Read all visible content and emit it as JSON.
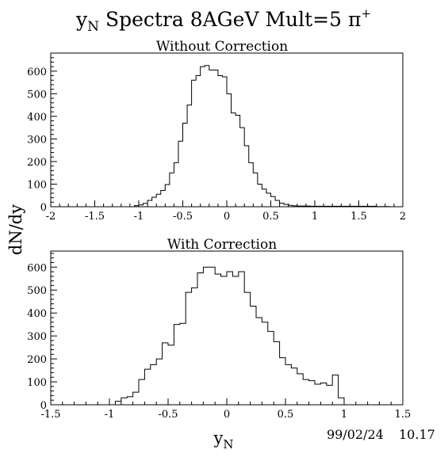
{
  "figure": {
    "title": "Spectra 8AGeV Mult=5",
    "title_prefix_symbol": "y",
    "title_prefix_subscript": "N",
    "title_suffix_symbol": "π",
    "title_suffix_superscript": "+",
    "ylabel": "dN/dy",
    "xlabel_symbol": "y",
    "xlabel_subscript": "N",
    "date": "99/02/24",
    "time": "10.17"
  },
  "chart_data": [
    {
      "type": "histogram",
      "title": "Without Correction",
      "xlim": [
        -2,
        2
      ],
      "ylim": [
        0,
        680
      ],
      "x_ticks": [
        -2,
        -1.5,
        -1,
        -0.5,
        0,
        0.5,
        1,
        1.5,
        2
      ],
      "x_tick_labels": [
        "-2",
        "-1.5",
        "-1",
        "-0.5",
        "0",
        "0.5",
        "1",
        "1.5",
        "2"
      ],
      "y_ticks": [
        0,
        100,
        200,
        300,
        400,
        500,
        600
      ],
      "y_tick_labels": [
        "0",
        "100",
        "200",
        "300",
        "400",
        "500",
        "600"
      ],
      "bin_edges_start": -1.05,
      "bin_width": 0.05,
      "values": [
        5,
        8,
        15,
        28,
        42,
        55,
        72,
        98,
        150,
        195,
        290,
        370,
        450,
        560,
        580,
        620,
        625,
        605,
        605,
        580,
        575,
        500,
        415,
        405,
        350,
        270,
        195,
        150,
        100,
        78,
        60,
        45,
        28,
        16,
        10,
        6,
        4,
        3,
        3,
        3,
        2,
        2,
        2,
        2,
        2,
        2,
        2,
        2,
        2,
        2,
        2,
        2,
        2,
        2,
        2,
        1,
        1,
        1
      ]
    },
    {
      "type": "histogram",
      "title": "With Correction",
      "xlim": [
        -1.5,
        1.5
      ],
      "ylim": [
        0,
        670
      ],
      "x_ticks": [
        -1.5,
        -1,
        -0.5,
        0,
        0.5,
        1,
        1.5
      ],
      "x_tick_labels": [
        "-1.5",
        "-1",
        "-0.5",
        "0",
        "0.5",
        "1",
        "1.5"
      ],
      "y_ticks": [
        0,
        100,
        200,
        300,
        400,
        500,
        600
      ],
      "y_tick_labels": [
        "0",
        "100",
        "200",
        "300",
        "400",
        "500",
        "600"
      ],
      "bin_edges_start": -0.95,
      "bin_width": 0.05,
      "values": [
        15,
        30,
        35,
        55,
        110,
        155,
        175,
        200,
        270,
        260,
        350,
        355,
        490,
        510,
        575,
        600,
        600,
        570,
        560,
        580,
        560,
        580,
        490,
        430,
        380,
        360,
        320,
        275,
        205,
        175,
        160,
        135,
        110,
        105,
        90,
        95,
        85,
        130,
        30
      ]
    }
  ]
}
